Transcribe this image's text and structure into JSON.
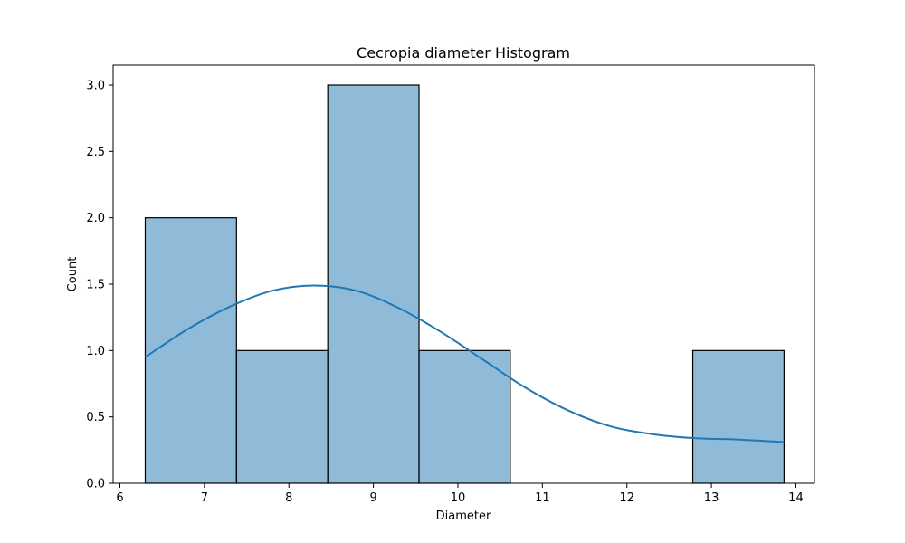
{
  "chart_data": {
    "type": "bar",
    "title": "Cecropia diameter Histogram",
    "xlabel": "Diameter",
    "ylabel": "Count",
    "xlim": [
      5.92,
      14.22
    ],
    "ylim": [
      0,
      3.15
    ],
    "xticks": [
      6,
      7,
      8,
      9,
      10,
      11,
      12,
      13,
      14
    ],
    "yticks": [
      0.0,
      0.5,
      1.0,
      1.5,
      2.0,
      2.5,
      3.0
    ],
    "bins": [
      {
        "x0": 6.3,
        "x1": 7.38,
        "count": 2
      },
      {
        "x0": 7.38,
        "x1": 8.46,
        "count": 1
      },
      {
        "x0": 8.46,
        "x1": 9.54,
        "count": 3
      },
      {
        "x0": 9.54,
        "x1": 10.62,
        "count": 1
      },
      {
        "x0": 10.62,
        "x1": 11.7,
        "count": 0
      },
      {
        "x0": 11.7,
        "x1": 12.78,
        "count": 0
      },
      {
        "x0": 12.78,
        "x1": 13.86,
        "count": 1
      }
    ],
    "kde": {
      "x": [
        6.3,
        6.8,
        7.3,
        7.8,
        8.3,
        8.8,
        9.3,
        9.8,
        10.3,
        10.8,
        11.3,
        11.8,
        12.3,
        12.8,
        13.3,
        13.86
      ],
      "y": [
        0.95,
        1.16,
        1.33,
        1.45,
        1.49,
        1.45,
        1.32,
        1.14,
        0.93,
        0.72,
        0.55,
        0.43,
        0.37,
        0.34,
        0.33,
        0.31
      ]
    },
    "bar_color": "#1f77b4",
    "bar_alpha": 0.5,
    "kde_color": "#1f77b4",
    "grid": false
  }
}
